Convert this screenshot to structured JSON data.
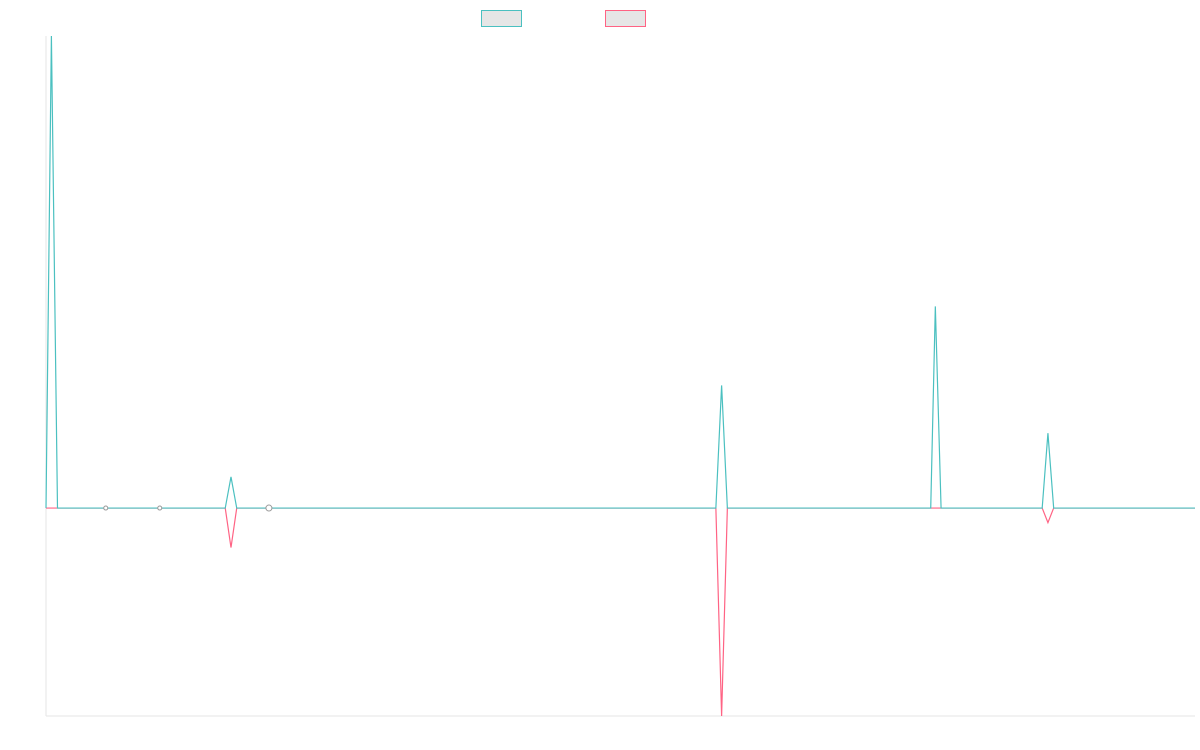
{
  "chart_data": {
    "type": "line",
    "title": "",
    "xlabel": "",
    "ylabel": "",
    "grid": false,
    "legend": "top-center",
    "x": [
      0,
      0.47,
      1,
      5.7,
      10.4,
      15.6,
      16.1,
      16.6,
      19.4,
      58.3,
      58.8,
      59.3,
      77,
      77.4,
      77.9,
      86.7,
      87.2,
      87.7,
      100
    ],
    "ylim": [
      -100,
      227
    ],
    "series": [
      {
        "name": "",
        "color": "#4bc0c0",
        "fill": "#e6e6e6",
        "values": [
          0,
          227,
          0,
          0,
          0,
          0,
          15,
          0,
          0,
          0,
          59,
          0,
          0,
          97,
          0,
          0,
          36,
          0,
          0
        ]
      },
      {
        "name": "",
        "color": "#ff6384",
        "fill": "#e6e6e6",
        "values": [
          0,
          0,
          0,
          0,
          0,
          0,
          -19,
          0,
          0,
          0,
          -100,
          0,
          0,
          0,
          0,
          0,
          -7,
          0,
          0
        ]
      }
    ],
    "markers": {
      "x": [
        5.2,
        9.9,
        19.4
      ],
      "y": [
        0,
        0,
        0
      ]
    }
  }
}
